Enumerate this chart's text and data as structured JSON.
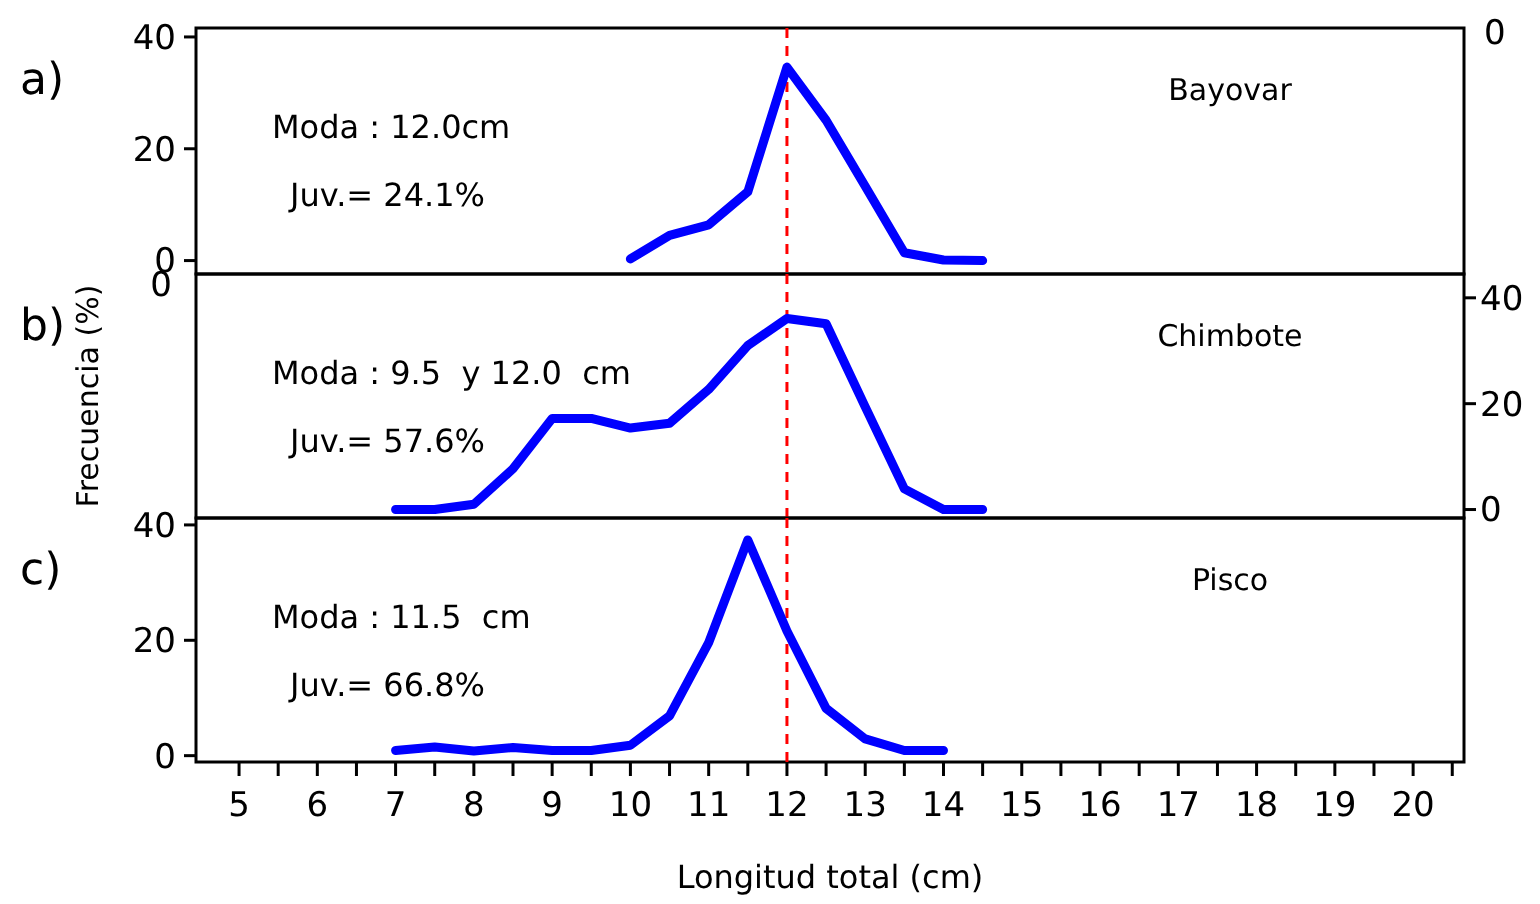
{
  "chart_data": [
    {
      "type": "line",
      "x": [
        10,
        10.5,
        11,
        11.5,
        12,
        12.5,
        13,
        13.5,
        14,
        14.5
      ],
      "series": [
        {
          "color": "#0000ff",
          "values": [
            0.3,
            4.5,
            6.4,
            12.3,
            34.6,
            25.1,
            13.3,
            1.4,
            0.1,
            0
          ]
        }
      ],
      "xlim": [
        4.45,
        20.65
      ],
      "ylim": [
        -2.4,
        41.6
      ],
      "yticks": [
        0,
        20,
        40
      ],
      "tick_labels": "y",
      "ref_lines": [
        {
          "axis": "x",
          "value": 12,
          "color": "#ff0000",
          "line_style": "dashed"
        }
      ],
      "annotations": [
        "a)",
        "Bayovar",
        "Moda : 12.0cm",
        "Juv.= 24.1%",
        "0"
      ],
      "line_style": "solid",
      "marker": "none"
    },
    {
      "type": "line",
      "x": [
        7,
        7.5,
        8,
        8.5,
        9,
        9.5,
        10,
        10.5,
        11,
        11.5,
        12,
        12.5,
        13,
        13.5,
        14,
        14.5
      ],
      "series": [
        {
          "color": "#0000ff",
          "axis": "y2",
          "values": [
            0,
            0,
            1.0,
            7.7,
            17.2,
            17.2,
            15.4,
            16.3,
            22.7,
            31.0,
            36.1,
            35.1,
            19.4,
            3.9,
            0,
            0
          ]
        }
      ],
      "xlim": [
        4.45,
        20.65
      ],
      "y2lim": [
        -1.6,
        44.5
      ],
      "y2ticks": [
        0,
        20,
        40
      ],
      "tick_labels": "y",
      "ylabel": "Frecuencia (%)",
      "ref_lines": [
        {
          "axis": "x",
          "value": 12,
          "color": "#ff0000",
          "line_style": "dashed"
        }
      ],
      "annotations": [
        "b)",
        "Chimbote",
        "Moda : 9.5  y 12.0  cm",
        "Juv.= 57.6%",
        "0"
      ],
      "line_style": "solid",
      "marker": "none"
    },
    {
      "type": "line",
      "x": [
        7,
        7.5,
        8,
        8.5,
        9,
        9.5,
        10,
        10.5,
        11,
        11.5,
        12,
        12.5,
        13,
        13.5,
        14
      ],
      "series": [
        {
          "color": "#0000ff",
          "values": [
            0.9,
            1.5,
            0.8,
            1.4,
            0.9,
            0.9,
            1.8,
            6.9,
            19.6,
            37.4,
            21.6,
            8.2,
            2.9,
            0.9,
            0.9
          ]
        }
      ],
      "xlim": [
        4.45,
        20.65
      ],
      "ylim": [
        -1.1,
        41.2
      ],
      "yticks": [
        0,
        20,
        40
      ],
      "xlabel": "Longitud total (cm)",
      "xticks": [
        5,
        {
          "value": 5.5,
          "label": null
        },
        6,
        {
          "value": 6.5,
          "label": null
        },
        7,
        {
          "value": 7.5,
          "label": null
        },
        8,
        {
          "value": 8.5,
          "label": null
        },
        9,
        {
          "value": 9.5,
          "label": null
        },
        10,
        {
          "value": 10.5,
          "label": null
        },
        11,
        {
          "value": 11.5,
          "label": null
        },
        12,
        {
          "value": 12.5,
          "label": null
        },
        13,
        {
          "value": 13.5,
          "label": null
        },
        14,
        {
          "value": 14.5,
          "label": null
        },
        15,
        {
          "value": 15.5,
          "label": null
        },
        16,
        {
          "value": 16.5,
          "label": null
        },
        17,
        {
          "value": 17.5,
          "label": null
        },
        18,
        {
          "value": 18.5,
          "label": null
        },
        19,
        {
          "value": 19.5,
          "label": null
        },
        20,
        {
          "value": 20.5,
          "label": null
        }
      ],
      "ref_lines": [
        {
          "axis": "x",
          "value": 12,
          "color": "#ff0000",
          "line_style": "dashed"
        }
      ],
      "annotations": [
        "c)",
        "Pisco",
        "Moda : 11.5  cm",
        "Juv.= 66.8%"
      ],
      "line_style": "solid",
      "marker": "none"
    }
  ]
}
